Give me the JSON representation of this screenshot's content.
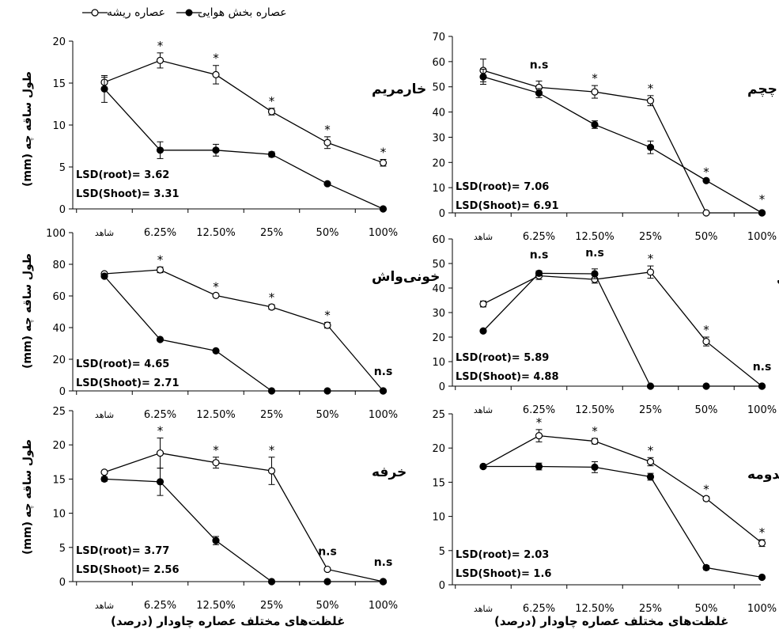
{
  "legend": {
    "root_label": "عصاره ریشه",
    "shoot_label": "عصاره بخش هوایی"
  },
  "x_axis_title": "غلظت‌های مختلف عصاره چاودار (درصد)",
  "y_axis_title": "طول ساقه چه (mm)",
  "chart_data": [
    {
      "type": "line",
      "title": "خارمریم",
      "categories": [
        "شاهد",
        "6.25%",
        "12.50%",
        "25%",
        "50%",
        "100%"
      ],
      "ylim": [
        0,
        20
      ],
      "ytick_step": 5,
      "series": [
        {
          "name": "عصاره ریشه",
          "marker": "open",
          "values": [
            15.1,
            17.7,
            16.0,
            11.6,
            7.9,
            5.5
          ],
          "errors": [
            0.6,
            0.9,
            1.1,
            0.4,
            0.7,
            0.4
          ]
        },
        {
          "name": "عصاره بخش هوایی",
          "marker": "filled",
          "values": [
            14.3,
            7.0,
            7.0,
            6.5,
            3.0,
            0.0
          ],
          "errors": [
            1.6,
            1.0,
            0.7,
            0.3,
            0.1,
            0.0
          ]
        }
      ],
      "significance": [
        "",
        "*",
        "*",
        "*",
        "*",
        "*"
      ],
      "lsd_root": "LSD(root)= 3.62",
      "lsd_shoot": "LSD(Shoot)= 3.31"
    },
    {
      "type": "line",
      "title": "چچم",
      "categories": [
        "شاهد",
        "6.25%",
        "12.50%",
        "25%",
        "50%",
        "100%"
      ],
      "ylim": [
        0,
        70
      ],
      "ytick_step": 10,
      "series": [
        {
          "name": "عصاره ریشه",
          "marker": "open",
          "values": [
            56.5,
            49.8,
            48.0,
            44.5,
            0.0,
            0.0
          ],
          "errors": [
            4.5,
            2.5,
            2.5,
            2.0,
            0.0,
            0.0
          ]
        },
        {
          "name": "عصاره بخش هوایی",
          "marker": "filled",
          "values": [
            54.0,
            47.5,
            35.0,
            26.0,
            12.8,
            0.0
          ],
          "errors": [
            3.0,
            1.8,
            1.5,
            2.5,
            0.5,
            0.0
          ]
        }
      ],
      "significance": [
        "",
        "n.s",
        "*",
        "*",
        "*",
        "*"
      ],
      "lsd_root": "LSD(root)= 7.06",
      "lsd_shoot": "LSD(Shoot)= 6.91"
    },
    {
      "type": "line",
      "title": "خونی‌واش",
      "categories": [
        "شاهد",
        "6.25%",
        "12.50%",
        "25%",
        "50%",
        "100%"
      ],
      "ylim": [
        0,
        100
      ],
      "ytick_step": 20,
      "series": [
        {
          "name": "عصاره ریشه",
          "marker": "open",
          "values": [
            74.0,
            76.5,
            60.3,
            53.0,
            41.5,
            0.0
          ],
          "errors": [
            1.0,
            1.8,
            1.0,
            1.5,
            1.8,
            0.0
          ]
        },
        {
          "name": "عصاره بخش هوایی",
          "marker": "filled",
          "values": [
            72.5,
            32.5,
            25.3,
            0.0,
            0.0,
            0.0
          ],
          "errors": [
            0.8,
            0.5,
            0.5,
            0.0,
            0.0,
            0.0
          ]
        }
      ],
      "significance": [
        "",
        "*",
        "*",
        "*",
        "*",
        "n.s"
      ],
      "lsd_root": "LSD(root)= 4.65",
      "lsd_shoot": "LSD(Shoot)= 2.71"
    },
    {
      "type": "line",
      "title": "خردل وحشی",
      "categories": [
        "شاهد",
        "6.25%",
        "12.50%",
        "25%",
        "50%",
        "100%"
      ],
      "ylim": [
        0,
        60
      ],
      "ytick_step": 10,
      "series": [
        {
          "name": "عصاره ریشه",
          "marker": "open",
          "values": [
            33.5,
            45.0,
            43.5,
            46.5,
            18.2,
            0.0
          ],
          "errors": [
            1.2,
            1.5,
            1.5,
            2.5,
            1.8,
            0.0
          ]
        },
        {
          "name": "عصاره بخش هوایی",
          "marker": "filled",
          "values": [
            22.5,
            46.0,
            45.8,
            0.0,
            0.0,
            0.0
          ],
          "errors": [
            0.5,
            1.0,
            2.0,
            0.0,
            0.0,
            0.0
          ]
        }
      ],
      "significance": [
        "",
        "n.s",
        "n.s",
        "*",
        "*",
        "n.s"
      ],
      "lsd_root": "LSD(root)= 5.89",
      "lsd_shoot": "LSD(Shoot)= 4.88"
    },
    {
      "type": "line",
      "title": "خرفه",
      "categories": [
        "شاهد",
        "6.25%",
        "12.50%",
        "25%",
        "50%",
        "100%"
      ],
      "ylim": [
        0,
        25
      ],
      "ytick_step": 5,
      "series": [
        {
          "name": "عصاره ریشه",
          "marker": "open",
          "values": [
            16.0,
            18.8,
            17.4,
            16.2,
            1.8,
            0.0
          ],
          "errors": [
            0.2,
            2.2,
            0.8,
            2.0,
            0.2,
            0.0
          ]
        },
        {
          "name": "عصاره بخش هوایی",
          "marker": "filled",
          "values": [
            15.0,
            14.6,
            6.0,
            0.0,
            0.0,
            0.0
          ],
          "errors": [
            0.3,
            2.0,
            0.6,
            0.0,
            0.0,
            0.0
          ]
        }
      ],
      "significance": [
        "",
        "*",
        "*",
        "*",
        "n.s",
        "n.s"
      ],
      "lsd_root": "LSD(root)= 3.77",
      "lsd_shoot": "LSD(Shoot)= 2.56"
    },
    {
      "type": "line",
      "title": "قدومه",
      "categories": [
        "شاهد",
        "6.25%",
        "12.50%",
        "25%",
        "50%",
        "100%"
      ],
      "ylim": [
        0,
        25
      ],
      "ytick_step": 5,
      "series": [
        {
          "name": "عصاره ریشه",
          "marker": "open",
          "values": [
            17.3,
            21.8,
            21.0,
            18.0,
            12.6,
            6.1
          ],
          "errors": [
            0.2,
            0.9,
            0.4,
            0.6,
            0.3,
            0.5
          ]
        },
        {
          "name": "عصاره بخش هوایی",
          "marker": "filled",
          "values": [
            17.3,
            17.3,
            17.2,
            15.8,
            2.5,
            1.1
          ],
          "errors": [
            0.2,
            0.5,
            0.8,
            0.5,
            0.3,
            0.1
          ]
        }
      ],
      "significance": [
        "",
        "*",
        "*",
        "*",
        "*",
        "*"
      ],
      "lsd_root": "LSD(root)= 2.03",
      "lsd_shoot": "LSD(Shoot)= 1.6"
    }
  ]
}
